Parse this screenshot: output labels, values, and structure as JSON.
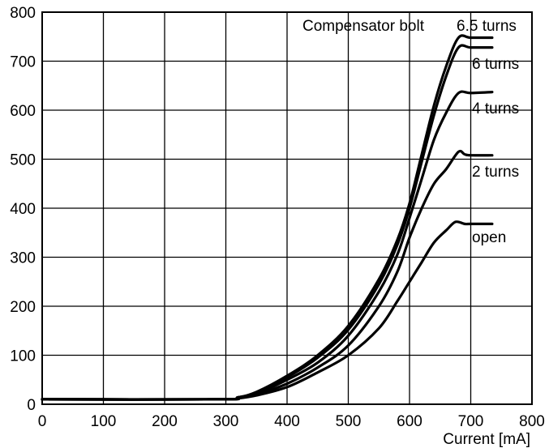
{
  "chart_data": {
    "type": "line",
    "title": "",
    "xlabel": "Current [mA]",
    "ylabel": "",
    "xlim": [
      0,
      800
    ],
    "ylim": [
      0,
      800
    ],
    "xticks": [
      "0",
      "100",
      "200",
      "300",
      "400",
      "500",
      "600",
      "700",
      "800"
    ],
    "yticks": [
      "0",
      "100",
      "200",
      "300",
      "400",
      "500",
      "600",
      "700",
      "800"
    ],
    "grid": true,
    "legend_title": "Compensator bolt",
    "series": [
      {
        "name": "6.5 turns",
        "x": [
          0,
          290,
          320,
          350,
          400,
          450,
          500,
          550,
          580,
          600,
          620,
          640,
          660,
          680,
          700,
          735
        ],
        "y": [
          10,
          10,
          14,
          25,
          58,
          100,
          160,
          255,
          335,
          410,
          510,
          610,
          690,
          748,
          748,
          748
        ]
      },
      {
        "name": "6 turns",
        "x": [
          0,
          290,
          320,
          350,
          400,
          450,
          500,
          550,
          580,
          600,
          620,
          640,
          660,
          680,
          700,
          735
        ],
        "y": [
          10,
          10,
          14,
          24,
          55,
          95,
          152,
          245,
          325,
          400,
          495,
          590,
          670,
          728,
          728,
          728
        ]
      },
      {
        "name": "4 turns",
        "x": [
          0,
          290,
          320,
          350,
          400,
          450,
          500,
          550,
          580,
          600,
          620,
          640,
          660,
          680,
          700,
          735
        ],
        "y": [
          10,
          10,
          14,
          22,
          50,
          85,
          140,
          230,
          305,
          380,
          460,
          540,
          595,
          635,
          635,
          637
        ]
      },
      {
        "name": "2 turns",
        "x": [
          0,
          290,
          320,
          350,
          400,
          450,
          500,
          550,
          580,
          600,
          620,
          640,
          660,
          680,
          690,
          700,
          735
        ],
        "y": [
          10,
          10,
          13,
          20,
          42,
          75,
          120,
          200,
          270,
          340,
          400,
          450,
          480,
          515,
          510,
          508,
          508
        ]
      },
      {
        "name": "open",
        "x": [
          0,
          290,
          320,
          350,
          400,
          450,
          500,
          550,
          580,
          600,
          620,
          640,
          660,
          675,
          690,
          700,
          735
        ],
        "y": [
          10,
          10,
          12,
          18,
          35,
          65,
          100,
          155,
          210,
          250,
          290,
          330,
          355,
          372,
          368,
          368,
          368
        ]
      }
    ]
  }
}
